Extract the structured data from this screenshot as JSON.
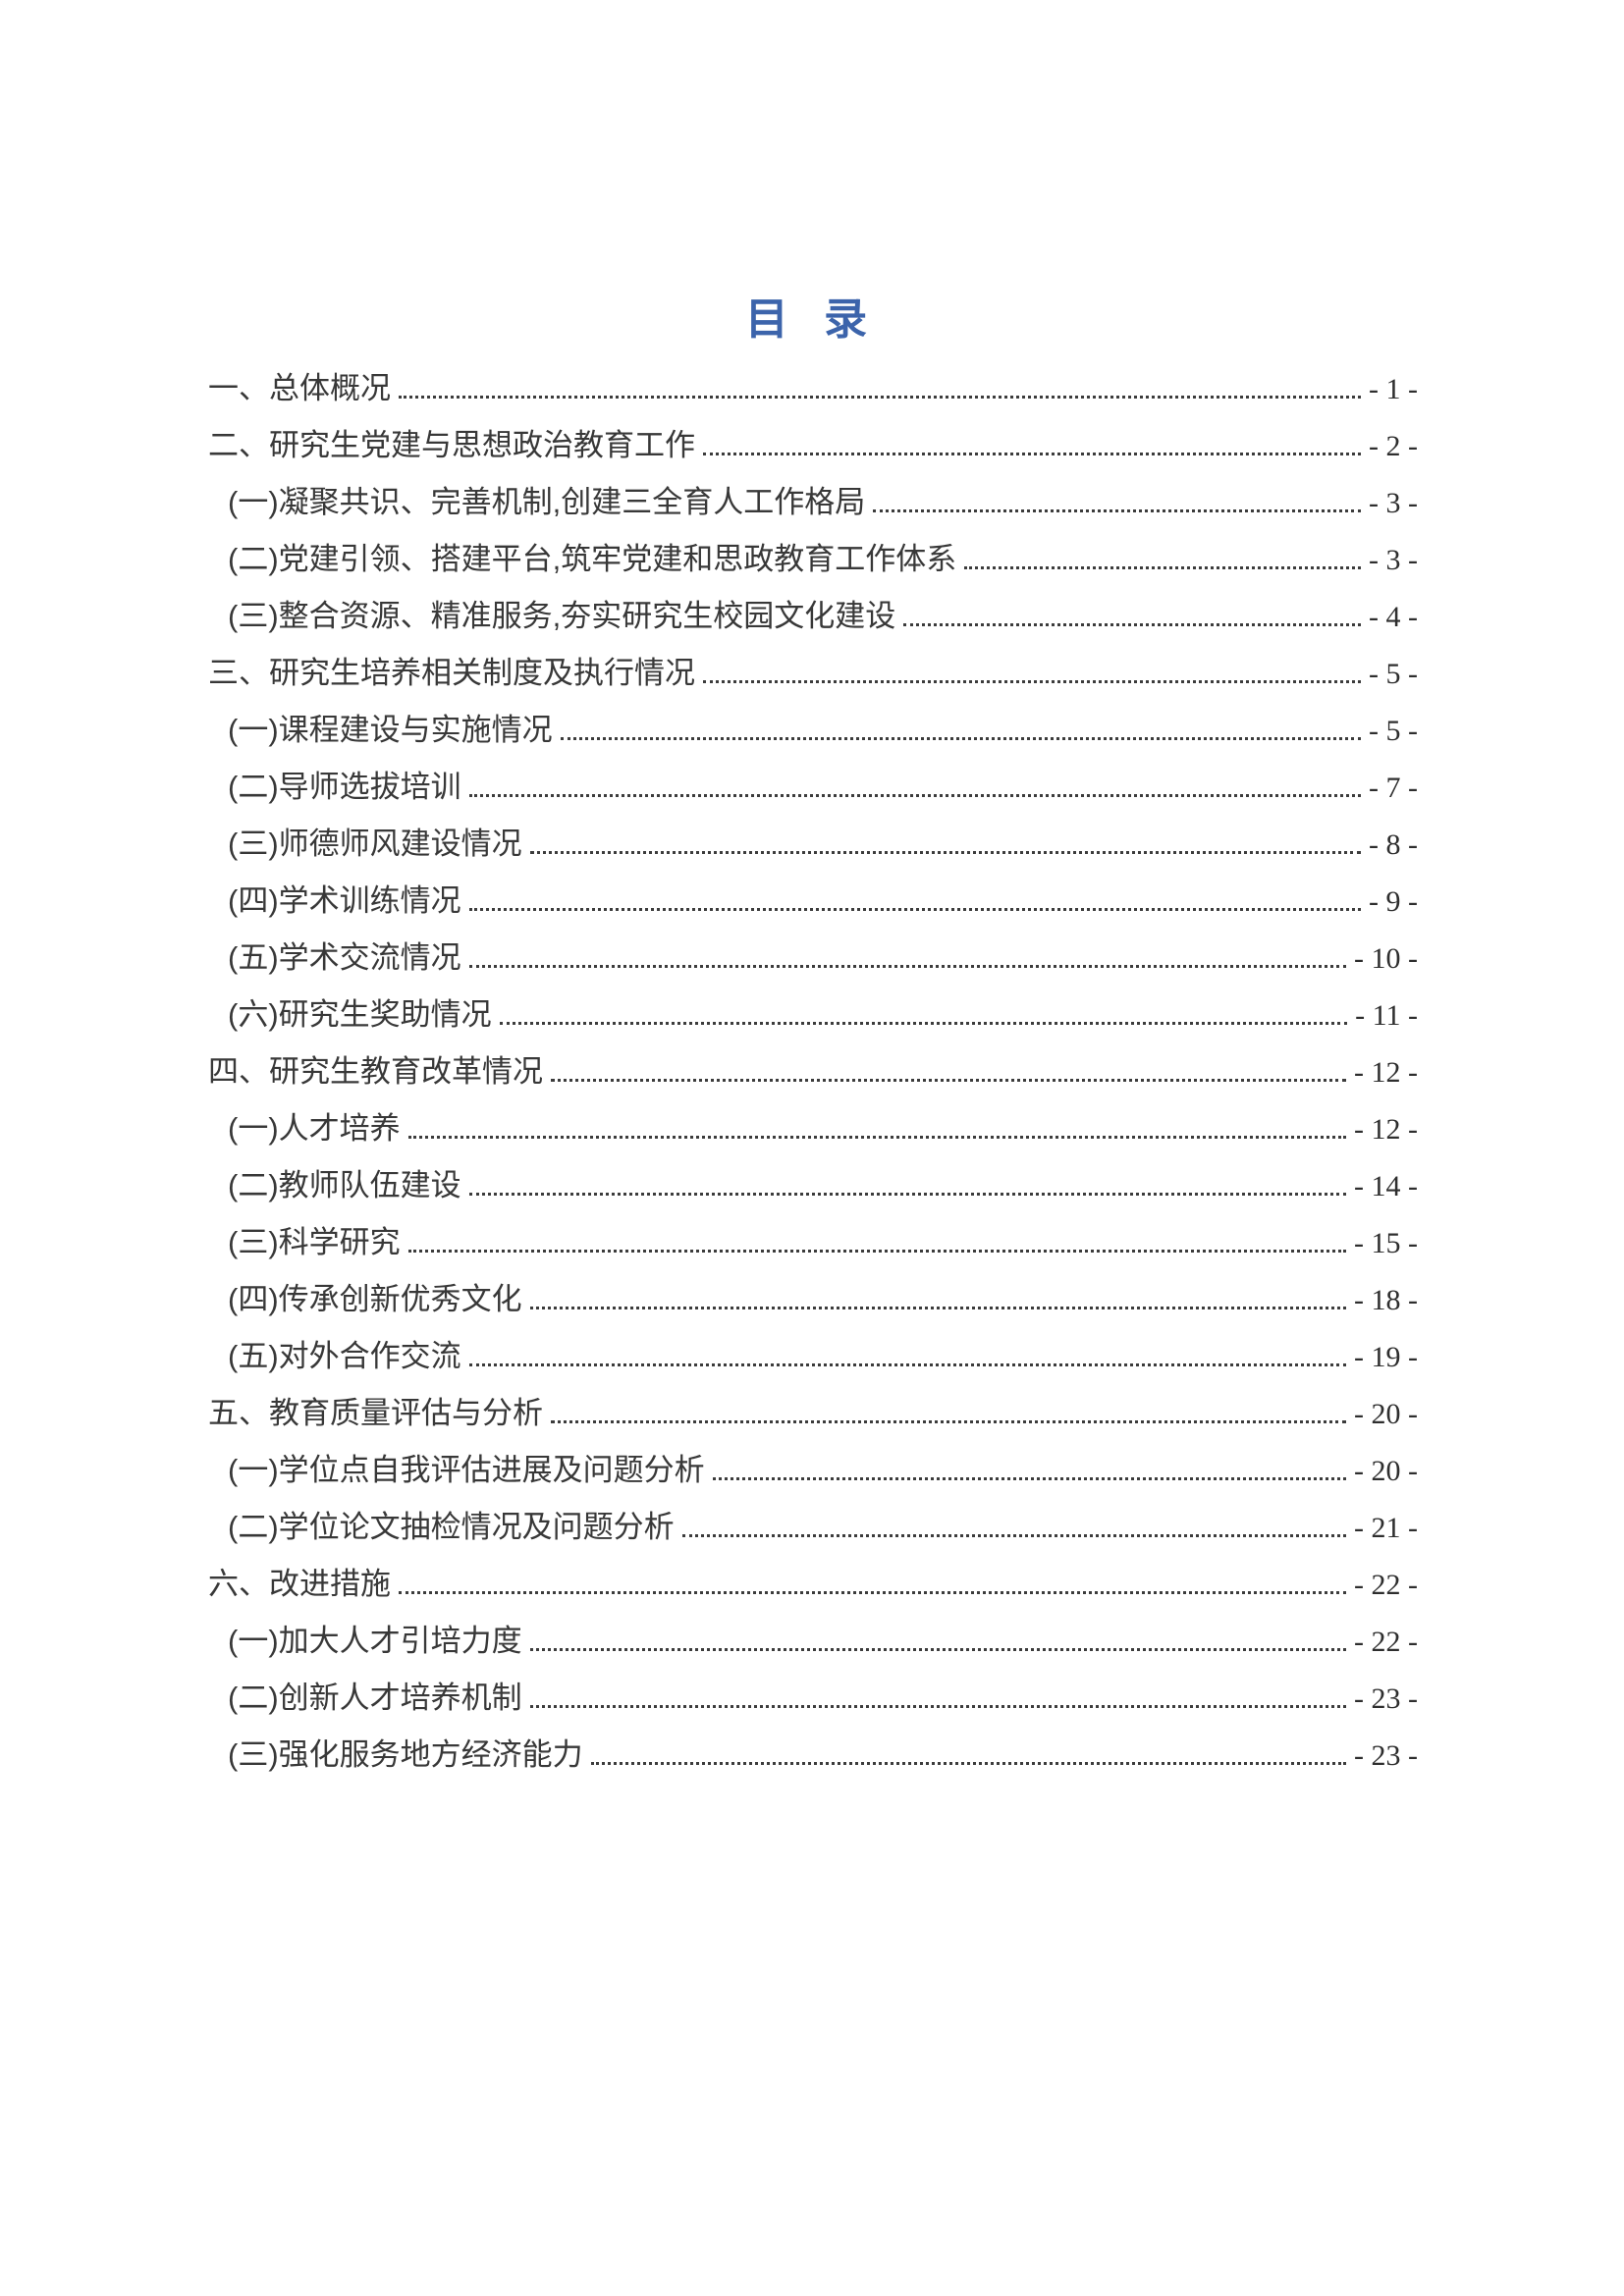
{
  "page": {
    "title": "目 录",
    "title_color": "#3c64ab",
    "text_color": "#383838"
  },
  "toc": {
    "entries": [
      {
        "level": 1,
        "label": "一、总体概况",
        "page": "- 1 -"
      },
      {
        "level": 1,
        "label": "二、研究生党建与思想政治教育工作",
        "page": "- 2 -"
      },
      {
        "level": 2,
        "label": "(一)凝聚共识、完善机制,创建三全育人工作格局",
        "page": "- 3 -"
      },
      {
        "level": 2,
        "label": "(二)党建引领、搭建平台,筑牢党建和思政教育工作体系",
        "page": "- 3 -"
      },
      {
        "level": 2,
        "label": "(三)整合资源、精准服务,夯实研究生校园文化建设",
        "page": "- 4 -"
      },
      {
        "level": 1,
        "label": "三、研究生培养相关制度及执行情况",
        "page": "- 5 -"
      },
      {
        "level": 2,
        "label": "(一)课程建设与实施情况",
        "page": "- 5 -"
      },
      {
        "level": 2,
        "label": "(二)导师选拔培训",
        "page": "- 7 -"
      },
      {
        "level": 2,
        "label": "(三)师德师风建设情况",
        "page": "- 8 -"
      },
      {
        "level": 2,
        "label": "(四)学术训练情况",
        "page": "- 9 -"
      },
      {
        "level": 2,
        "label": "(五)学术交流情况",
        "page": "- 10 -"
      },
      {
        "level": 2,
        "label": "(六)研究生奖助情况",
        "page": "- 11 -"
      },
      {
        "level": 1,
        "label": "四、研究生教育改革情况",
        "page": "- 12 -"
      },
      {
        "level": 2,
        "label": "(一)人才培养",
        "page": "- 12 -"
      },
      {
        "level": 2,
        "label": "(二)教师队伍建设",
        "page": "- 14 -"
      },
      {
        "level": 2,
        "label": "(三)科学研究",
        "page": "- 15 -"
      },
      {
        "level": 2,
        "label": "(四)传承创新优秀文化",
        "page": "- 18 -"
      },
      {
        "level": 2,
        "label": "(五)对外合作交流",
        "page": "- 19 -"
      },
      {
        "level": 1,
        "label": "五、教育质量评估与分析",
        "page": "- 20 -"
      },
      {
        "level": 2,
        "label": "(一)学位点自我评估进展及问题分析",
        "page": "- 20 -"
      },
      {
        "level": 2,
        "label": "(二)学位论文抽检情况及问题分析",
        "page": "- 21 -"
      },
      {
        "level": 1,
        "label": "六、改进措施",
        "page": "- 22 -"
      },
      {
        "level": 2,
        "label": "(一)加大人才引培力度",
        "page": "- 22 -"
      },
      {
        "level": 2,
        "label": "(二)创新人才培养机制",
        "page": "- 23 -"
      },
      {
        "level": 2,
        "label": "(三)强化服务地方经济能力",
        "page": "- 23 -"
      }
    ]
  }
}
